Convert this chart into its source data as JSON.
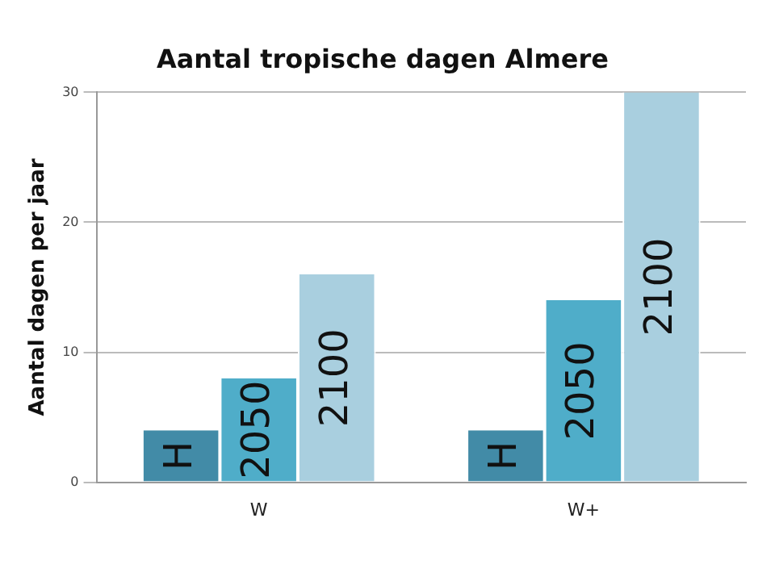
{
  "chart_data": {
    "type": "bar",
    "title": "Aantal tropische dagen Almere",
    "ylabel": "Aantal dagen per jaar",
    "categories": [
      "W",
      "W+"
    ],
    "series": [
      {
        "name": "H",
        "color": "#428ba7",
        "values": [
          4,
          4
        ]
      },
      {
        "name": "2050",
        "color": "#4fadc9",
        "values": [
          8,
          14
        ]
      },
      {
        "name": "2100",
        "color": "#a9cfdf",
        "values": [
          16,
          30
        ]
      }
    ],
    "ylim": [
      0,
      30
    ],
    "yticks": [
      0,
      10,
      20,
      30
    ],
    "grid": "y",
    "legend": false
  }
}
